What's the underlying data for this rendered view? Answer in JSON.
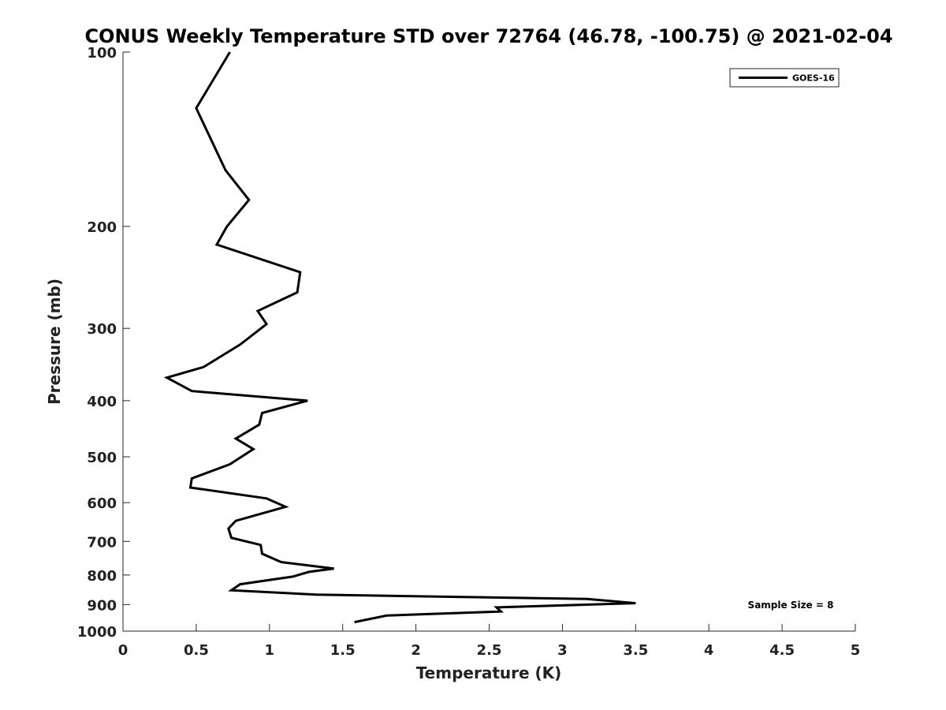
{
  "chart_data": {
    "type": "line",
    "title": "CONUS Weekly Temperature STD over 72764 (46.78, -100.75) @ 2021-02-04",
    "xlabel": "Temperature (K)",
    "ylabel": "Pressure (mb)",
    "xlim": [
      0,
      5
    ],
    "ylim": [
      100,
      1000
    ],
    "y_scale": "log",
    "y_reversed": true,
    "x_ticks": [
      "0",
      "0.5",
      "1",
      "1.5",
      "2",
      "2.5",
      "3",
      "3.5",
      "4",
      "4.5",
      "5"
    ],
    "y_ticks": [
      "100",
      "200",
      "300",
      "400",
      "500",
      "600",
      "700",
      "800",
      "900",
      "1000"
    ],
    "grid": false,
    "legend_position": "top-right",
    "annotation": "Sample Size = 8",
    "series": [
      {
        "name": "GOES-16",
        "color": "#000000",
        "x": [
          0.73,
          0.5,
          0.7,
          0.86,
          0.71,
          0.64,
          1.21,
          1.19,
          0.92,
          0.98,
          0.8,
          0.55,
          0.3,
          0.47,
          1.26,
          0.95,
          0.93,
          0.77,
          0.89,
          0.73,
          0.47,
          0.46,
          0.98,
          1.11,
          0.77,
          0.72,
          0.74,
          0.94,
          0.95,
          1.08,
          1.44,
          1.27,
          1.16,
          0.8,
          0.74,
          1.32,
          3.17,
          3.5,
          2.55,
          2.58,
          1.8,
          1.58
        ],
        "y": [
          100,
          125,
          160,
          180,
          200,
          215,
          240,
          260,
          280,
          295,
          320,
          350,
          365,
          385,
          400,
          420,
          440,
          465,
          485,
          515,
          545,
          565,
          590,
          610,
          645,
          665,
          690,
          710,
          735,
          760,
          780,
          790,
          805,
          830,
          850,
          865,
          880,
          895,
          910,
          925,
          940,
          965
        ]
      }
    ]
  }
}
